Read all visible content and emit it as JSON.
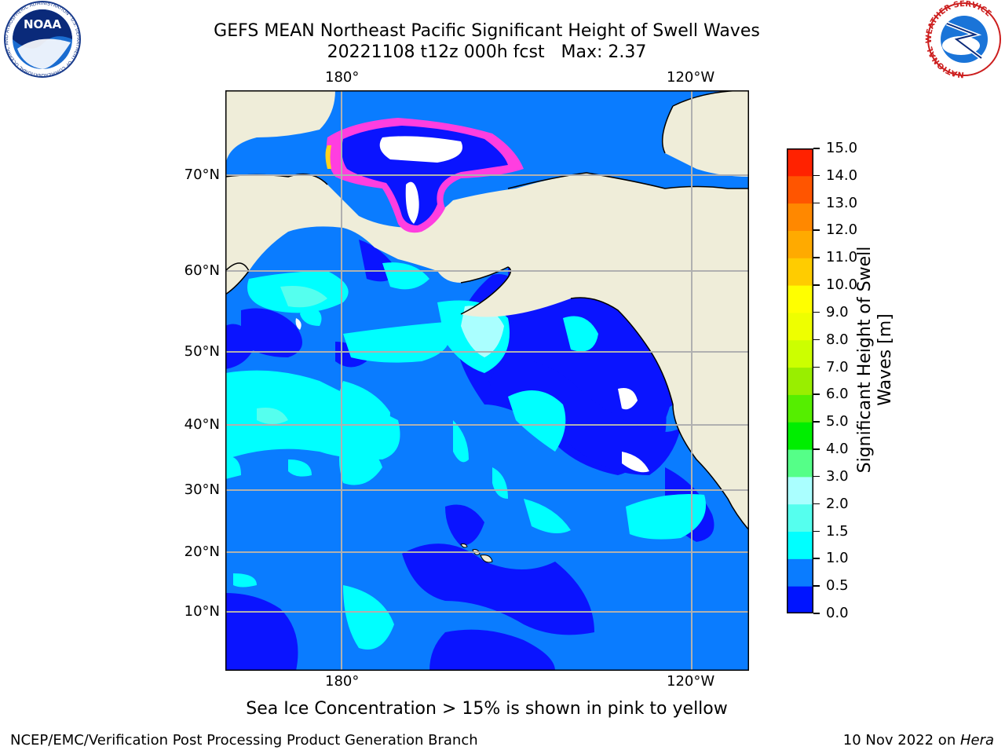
{
  "title_line1": "GEFS MEAN Northeast Pacific Significant Height of Swell Waves",
  "title_line2": "20221108 t12z 000h fcst   Max: 2.37",
  "map": {
    "lon_labels": [
      "180°",
      "120°W"
    ],
    "lat_labels": [
      "70°N",
      "60°N",
      "50°N",
      "40°N",
      "30°N",
      "20°N",
      "10°N"
    ],
    "colors": {
      "land": "#efedd9",
      "ocean_lt05": "#0a14ff",
      "ocean_05_1": "#0a7cff",
      "ocean_1_15": "#00ffff",
      "ocean_15_2": "#55ffee",
      "ocean_2_3": "#aaffff",
      "gridline": "#b0b0b0",
      "ice_pink": "#ff3ee0",
      "ice_yellow": "#ffd21e"
    }
  },
  "colorbar": {
    "title": "Significant Height of Swell\nWaves [m]",
    "ticks": [
      "15.0",
      "14.0",
      "13.0",
      "12.0",
      "11.0",
      "10.0",
      "9.0",
      "8.0",
      "7.0",
      "6.0",
      "5.0",
      "4.0",
      "3.0",
      "2.0",
      "1.5",
      "1.0",
      "0.5",
      "0.0"
    ],
    "colors": [
      "#0014ff",
      "#0a7cff",
      "#00ffff",
      "#55ffee",
      "#aaffff",
      "#55ff88",
      "#00ee00",
      "#55ee00",
      "#99ee00",
      "#ccff00",
      "#eeff00",
      "#ffff00",
      "#ffcc00",
      "#ffaa00",
      "#ff8800",
      "#ff5500",
      "#ff2200"
    ]
  },
  "caption": "Sea Ice Concentration > 15% is shown in pink to yellow",
  "footer_left": "NCEP/EMC/Verification Post Processing Product Generation Branch",
  "footer_right_date": "10 Nov 2022 on ",
  "footer_right_host": "Hera",
  "logos": {
    "noaa_text": "NOAA",
    "noaa_ring": "NATIONAL OCEANIC AND ATMOSPHERIC ADMINISTRATION · U.S. DEPARTMENT OF COMMERCE",
    "nws_ring": "NATIONAL WEATHER SERVICE"
  }
}
